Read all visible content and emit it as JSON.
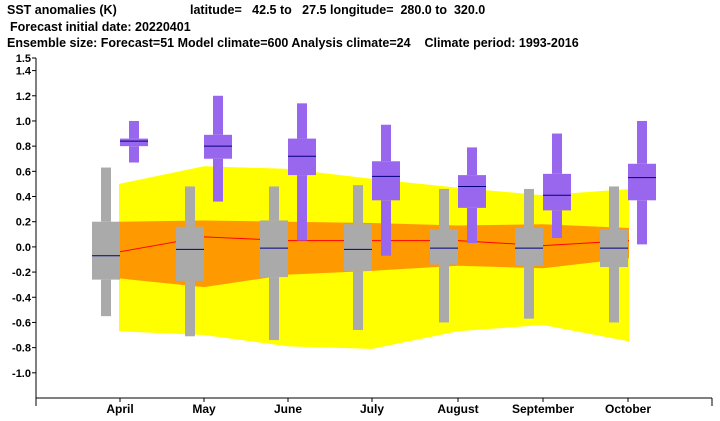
{
  "header": {
    "title": "SST anomalies (K)",
    "region": "latitude=   42.5 to   27.5 longitude=  280.0 to  320.0",
    "initial_date": "Forecast initial date: 20220401",
    "ensemble": "Ensemble size: Forecast=51 Model climate=600 Analysis climate=24    Climate period: 1993-2016"
  },
  "colors": {
    "forecast_box": "#9966ee",
    "climate_box": "#aaaaaa",
    "outer_band": "#ffff00",
    "inner_band": "#ff9900",
    "median_line": "#000080",
    "analysis_line": "#ff0000"
  },
  "chart_data": {
    "type": "box",
    "ylim": [
      -1.2,
      1.5
    ],
    "yticks": [
      "1.5",
      "1.4",
      "1.2",
      "1.0",
      "0.8",
      "0.6",
      "0.4",
      "0.2",
      "0.0",
      "-0.2",
      "-0.4",
      "-0.6",
      "-0.8",
      "-1.0"
    ],
    "yticks_values": [
      1.5,
      1.4,
      1.2,
      1.0,
      0.8,
      0.6,
      0.4,
      0.2,
      0.0,
      -0.2,
      -0.4,
      -0.6,
      -0.8,
      -1.0
    ],
    "categories": [
      "April",
      "May",
      "June",
      "July",
      "August",
      "September",
      "October"
    ],
    "forecast": [
      {
        "min": 0.67,
        "q1": 0.8,
        "median": 0.84,
        "q3": 0.86,
        "max": 1.0
      },
      {
        "min": 0.36,
        "q1": 0.7,
        "median": 0.8,
        "q3": 0.89,
        "max": 1.2
      },
      {
        "min": 0.05,
        "q1": 0.57,
        "median": 0.72,
        "q3": 0.86,
        "max": 1.14
      },
      {
        "min": -0.07,
        "q1": 0.37,
        "median": 0.56,
        "q3": 0.68,
        "max": 0.97
      },
      {
        "min": 0.03,
        "q1": 0.31,
        "median": 0.48,
        "q3": 0.57,
        "max": 0.79
      },
      {
        "min": 0.07,
        "q1": 0.29,
        "median": 0.41,
        "q3": 0.58,
        "max": 0.9
      },
      {
        "min": 0.02,
        "q1": 0.37,
        "median": 0.55,
        "q3": 0.66,
        "max": 1.0
      }
    ],
    "model_climate": [
      {
        "min": -0.55,
        "q1": -0.26,
        "median": -0.07,
        "q3": 0.2,
        "max": 0.63
      },
      {
        "min": -0.71,
        "q1": -0.27,
        "median": -0.02,
        "q3": 0.16,
        "max": 0.48
      },
      {
        "min": -0.74,
        "q1": -0.24,
        "median": -0.01,
        "q3": 0.21,
        "max": 0.48
      },
      {
        "min": -0.66,
        "q1": -0.19,
        "median": -0.02,
        "q3": 0.18,
        "max": 0.49
      },
      {
        "min": -0.6,
        "q1": -0.14,
        "median": -0.01,
        "q3": 0.14,
        "max": 0.46
      },
      {
        "min": -0.57,
        "q1": -0.15,
        "median": -0.01,
        "q3": 0.15,
        "max": 0.46
      },
      {
        "min": -0.6,
        "q1": -0.16,
        "median": -0.01,
        "q3": 0.14,
        "max": 0.48
      }
    ],
    "analysis_climate": {
      "outer_upper": [
        0.5,
        0.64,
        0.62,
        0.54,
        0.47,
        0.41,
        0.46
      ],
      "outer_lower": [
        -0.67,
        -0.7,
        -0.79,
        -0.81,
        -0.67,
        -0.62,
        -0.75
      ],
      "inner_upper": [
        0.2,
        0.21,
        0.2,
        0.19,
        0.17,
        0.18,
        0.15
      ],
      "inner_lower": [
        -0.25,
        -0.32,
        -0.22,
        -0.19,
        -0.15,
        -0.17,
        -0.09
      ],
      "mean": [
        -0.04,
        0.08,
        0.05,
        0.05,
        0.05,
        0.01,
        0.05
      ]
    }
  }
}
